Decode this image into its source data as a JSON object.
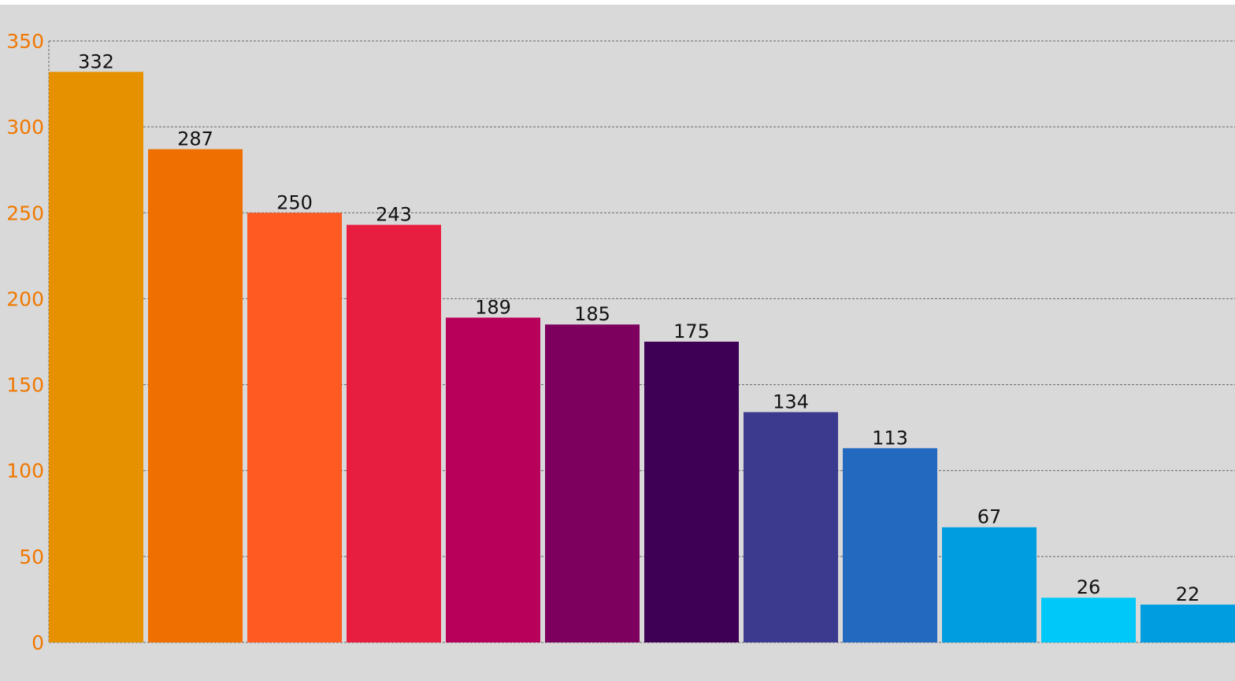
{
  "chart_data": {
    "type": "bar",
    "categories": [
      null,
      null,
      null,
      null,
      null,
      null,
      null,
      null,
      null,
      null,
      null,
      null
    ],
    "values": [
      332,
      287,
      250,
      243,
      189,
      185,
      175,
      134,
      113,
      67,
      26,
      22
    ],
    "colors": [
      "#e69100",
      "#ef7000",
      "#ff5a22",
      "#e81e40",
      "#b8005a",
      "#7d005e",
      "#3d0055",
      "#3b3a8f",
      "#2369c0",
      "#009de0",
      "#00c8f8",
      "#009de0"
    ],
    "ylim": [
      0,
      350
    ],
    "yticks": [
      0,
      50,
      100,
      150,
      200,
      250,
      300,
      350
    ],
    "grid": true
  }
}
